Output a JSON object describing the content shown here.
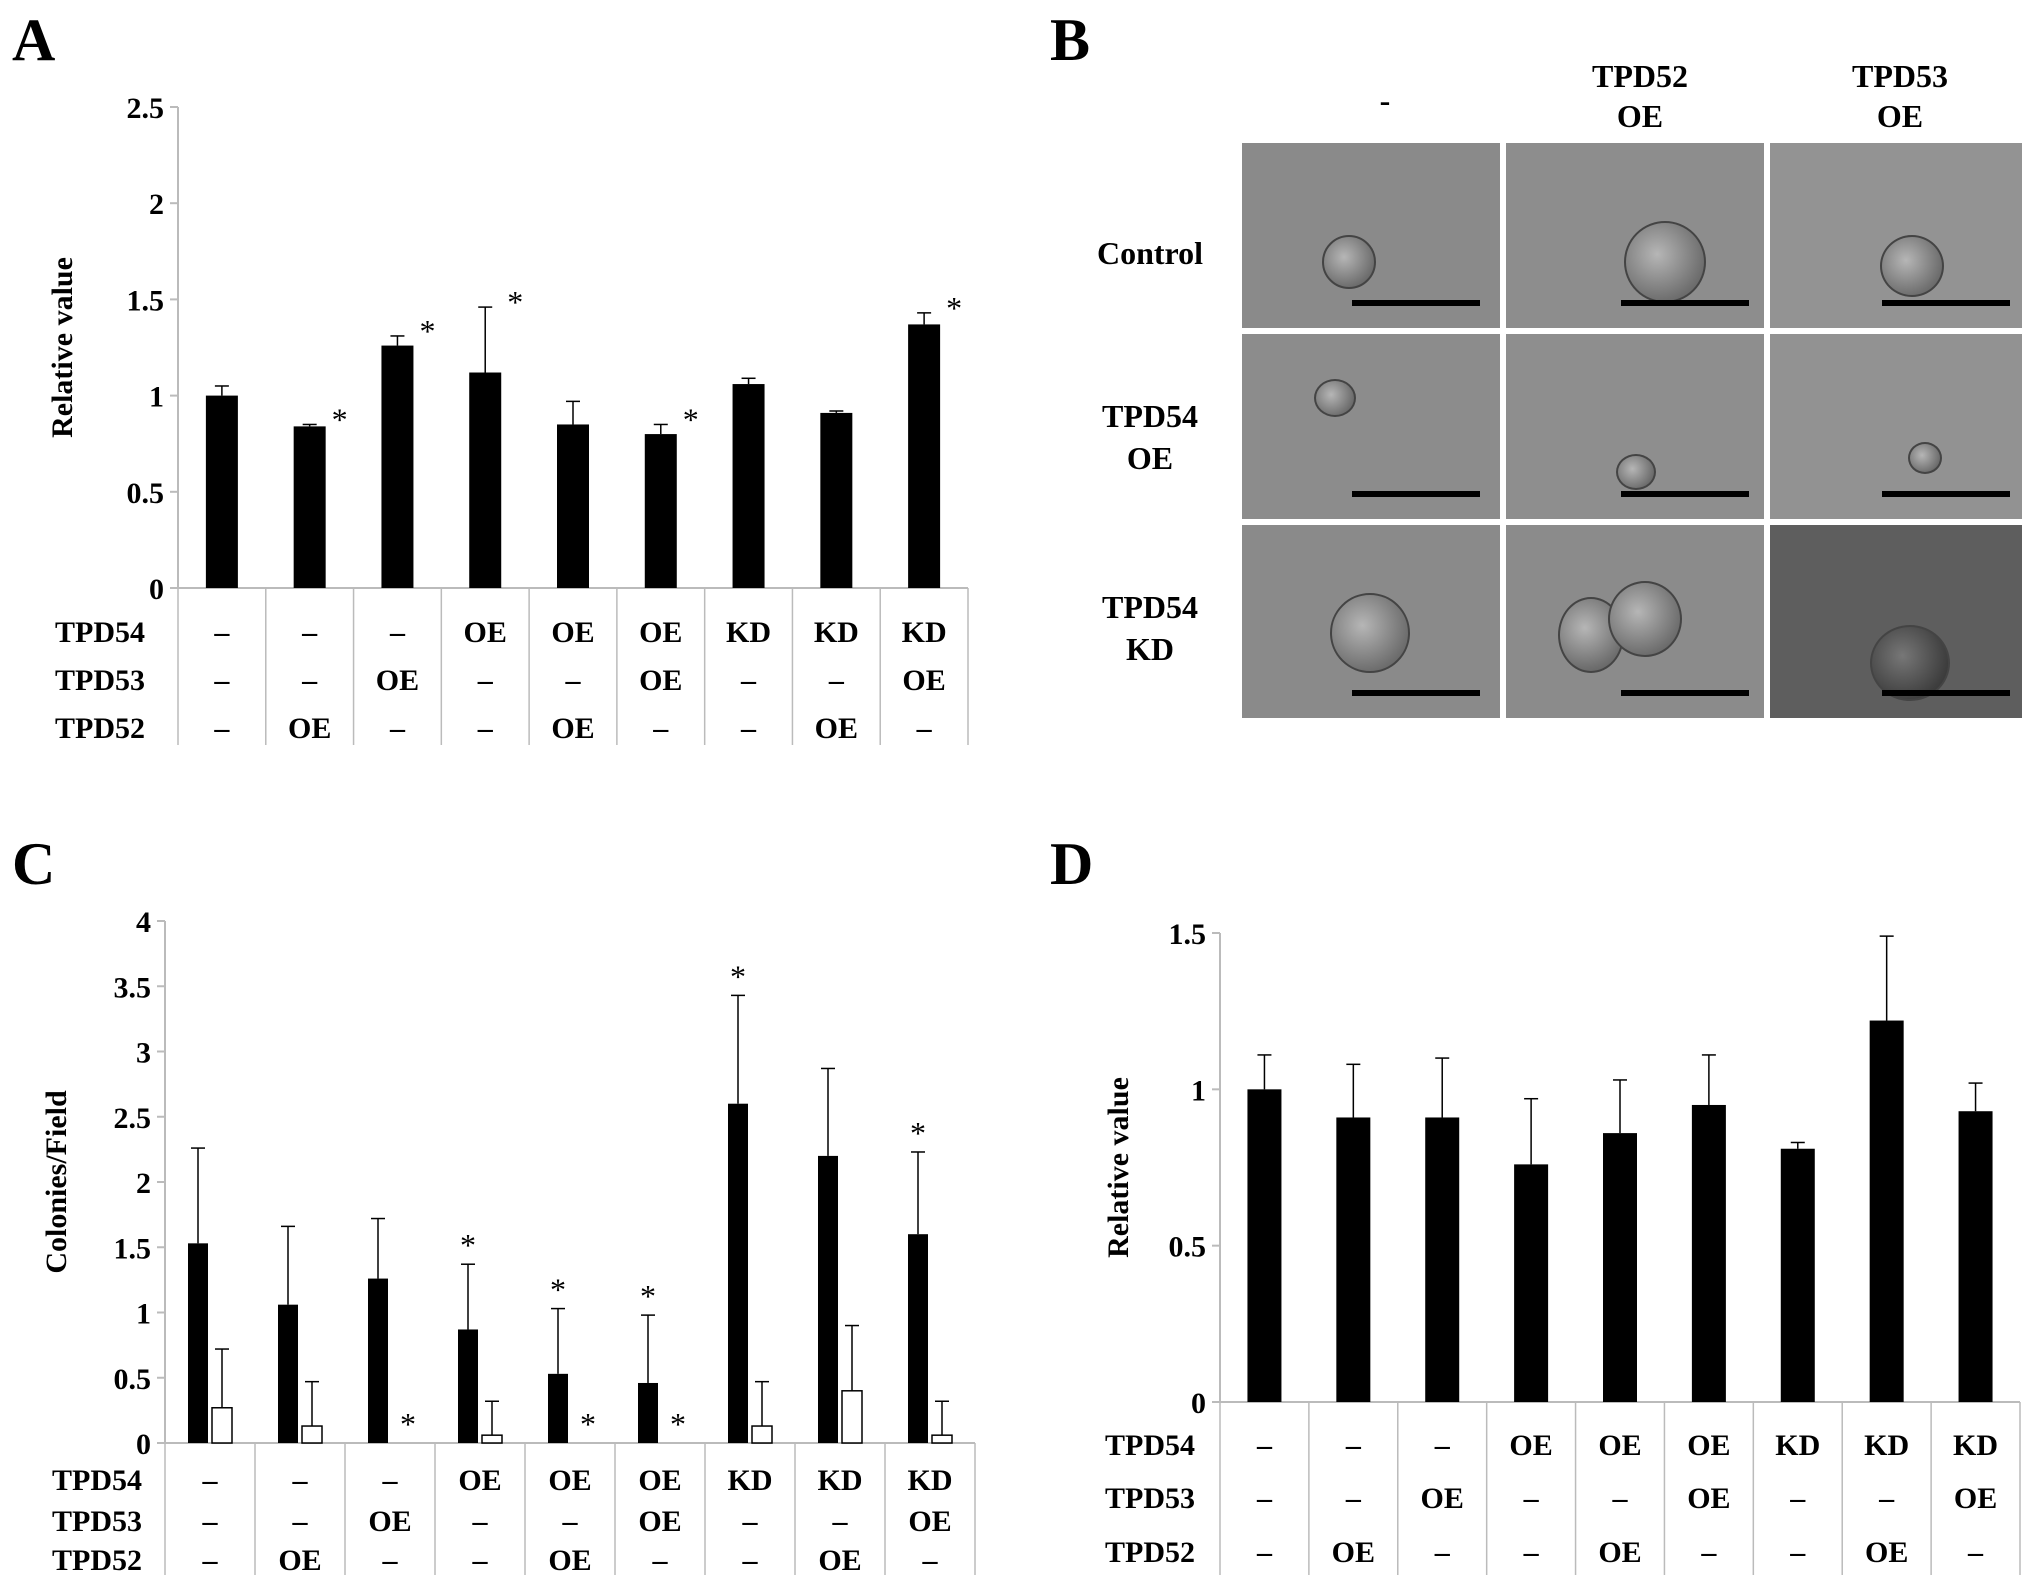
{
  "panels": {
    "a": {
      "label": "A"
    },
    "b": {
      "label": "B",
      "col_headers": [
        [
          "-"
        ],
        [
          "TPD52",
          "OE"
        ],
        [
          "TPD53",
          "OE"
        ]
      ],
      "row_headers": [
        [
          "Control"
        ],
        [
          "TPD54",
          "OE"
        ],
        [
          "TPD54",
          "KD"
        ]
      ]
    },
    "c": {
      "label": "C"
    },
    "d": {
      "label": "D"
    }
  },
  "conditions": {
    "row_names": [
      "TPD54",
      "TPD53",
      "TPD52"
    ],
    "rows": [
      [
        "–",
        "–",
        "–",
        "OE",
        "OE",
        "OE",
        "KD",
        "KD",
        "KD"
      ],
      [
        "–",
        "–",
        "OE",
        "–",
        "–",
        "OE",
        "–",
        "–",
        "OE"
      ],
      [
        "–",
        "OE",
        "–",
        "–",
        "OE",
        "–",
        "–",
        "OE",
        "–"
      ]
    ]
  },
  "chart_data": [
    {
      "id": "A",
      "type": "bar",
      "ylabel": "Relative value",
      "ylim": [
        0,
        2.5
      ],
      "yticks": [
        "0",
        "0.5",
        "1",
        "1.5",
        "2",
        "2.5"
      ],
      "series": [
        {
          "values": [
            1.0,
            0.84,
            1.26,
            1.12,
            0.85,
            0.8,
            1.06,
            0.91,
            1.37
          ],
          "errors": [
            0.05,
            0.01,
            0.05,
            0.34,
            0.12,
            0.05,
            0.03,
            0.01,
            0.06
          ],
          "significant": [
            false,
            true,
            true,
            true,
            false,
            true,
            false,
            false,
            true
          ]
        }
      ],
      "marker": "*"
    },
    {
      "id": "C",
      "type": "bar",
      "ylabel": "Colonies/Field",
      "ylim": [
        0,
        4
      ],
      "yticks": [
        "0",
        "0.5",
        "1",
        "1.5",
        "2",
        "2.5",
        "3",
        "3.5",
        "4"
      ],
      "series": [
        {
          "values": [
            1.53,
            1.06,
            1.26,
            0.87,
            0.53,
            0.46,
            2.6,
            2.2,
            1.6
          ],
          "errors": [
            0.73,
            0.6,
            0.46,
            0.5,
            0.5,
            0.52,
            0.83,
            0.67,
            0.63
          ],
          "significant": [
            false,
            false,
            false,
            true,
            true,
            true,
            true,
            false,
            true
          ]
        },
        {
          "values": [
            0.27,
            0.13,
            0.0,
            0.06,
            0.0,
            0.0,
            0.13,
            0.4,
            0.06
          ],
          "errors": [
            0.45,
            0.34,
            0.0,
            0.26,
            0.0,
            0.0,
            0.34,
            0.5,
            0.26
          ],
          "significant": [
            false,
            false,
            true,
            false,
            true,
            true,
            false,
            false,
            false
          ]
        }
      ],
      "marker": "*"
    },
    {
      "id": "D",
      "type": "bar",
      "ylabel": "Relative value",
      "ylim": [
        0,
        1.5
      ],
      "yticks": [
        "0",
        "0.5",
        "1",
        "1.5"
      ],
      "series": [
        {
          "values": [
            1.0,
            0.91,
            0.91,
            0.76,
            0.86,
            0.95,
            0.81,
            1.22,
            0.93
          ],
          "errors": [
            0.11,
            0.17,
            0.19,
            0.21,
            0.17,
            0.16,
            0.02,
            0.27,
            0.09
          ],
          "significant": [
            false,
            false,
            false,
            false,
            false,
            false,
            false,
            false,
            false
          ]
        }
      ],
      "marker": "*"
    }
  ]
}
